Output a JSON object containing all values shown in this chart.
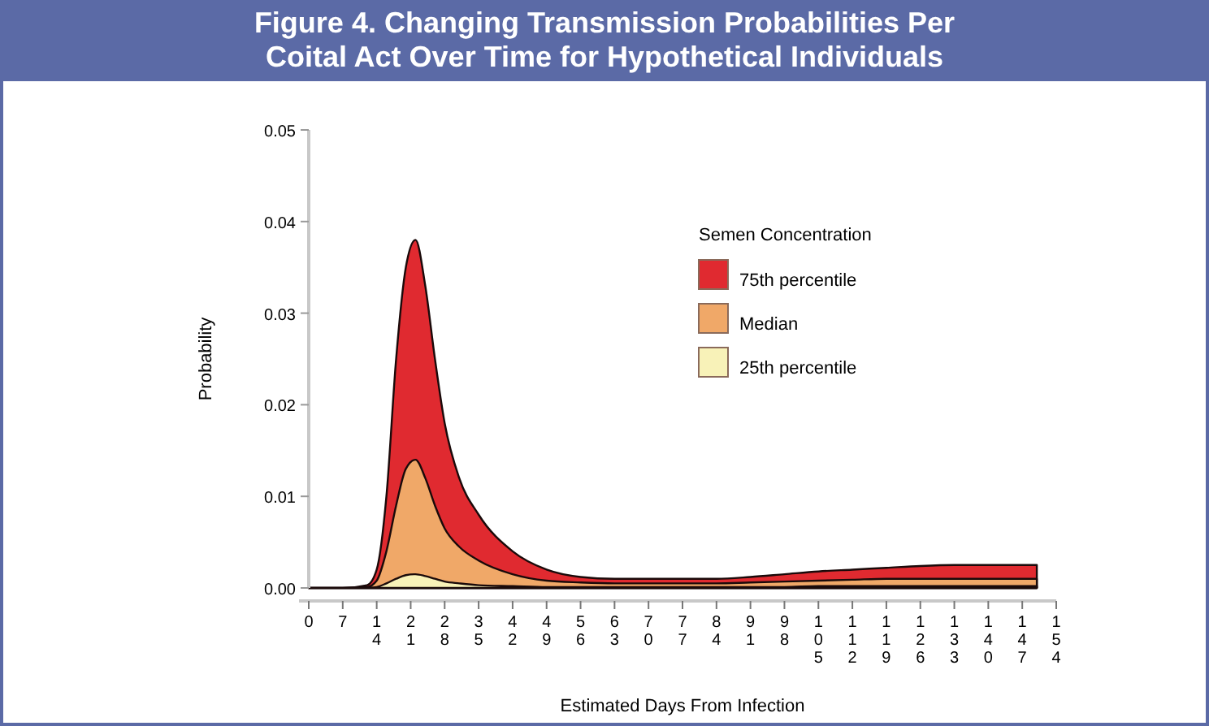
{
  "chart_data": {
    "type": "area",
    "title": "Figure 4. Changing Transmission Probabilities Per Coital Act Over Time for Hypothetical Individuals",
    "xlabel": "Estimated Days From Infection",
    "ylabel": "Probability",
    "legend_title": "Semen Concentration",
    "legend": "top right",
    "x": [
      0,
      7,
      12,
      14,
      16,
      18,
      20,
      22,
      24,
      26,
      28,
      31,
      35,
      42,
      49,
      56,
      63,
      70,
      77,
      84,
      91,
      98,
      105,
      112,
      119,
      126,
      133,
      140,
      147,
      150
    ],
    "xlim": [
      0,
      154
    ],
    "xticks": [
      0,
      7,
      14,
      21,
      28,
      35,
      42,
      49,
      56,
      63,
      70,
      77,
      84,
      91,
      98,
      105,
      112,
      119,
      126,
      133,
      140,
      147,
      154
    ],
    "ylim": [
      0,
      0.05
    ],
    "yticks": [
      {
        "value": 0,
        "label": "0.00"
      },
      {
        "value": 0.01,
        "label": "0.01"
      },
      {
        "value": 0.02,
        "label": "0.02"
      },
      {
        "value": 0.03,
        "label": "0.03"
      },
      {
        "value": 0.04,
        "label": "0.04"
      },
      {
        "value": 0.05,
        "label": "0.05"
      }
    ],
    "series": [
      {
        "name": "75th percentile",
        "color": "#e02a30",
        "values": [
          0,
          0,
          0.0003,
          0.002,
          0.01,
          0.025,
          0.035,
          0.038,
          0.033,
          0.025,
          0.018,
          0.012,
          0.008,
          0.004,
          0.002,
          0.0012,
          0.001,
          0.001,
          0.001,
          0.001,
          0.0012,
          0.0015,
          0.0018,
          0.002,
          0.0022,
          0.0024,
          0.0025,
          0.0025,
          0.0025,
          0.0025
        ]
      },
      {
        "name": "Median",
        "color": "#f0a868",
        "values": [
          0,
          0,
          0.0001,
          0.0008,
          0.004,
          0.009,
          0.013,
          0.014,
          0.012,
          0.009,
          0.0065,
          0.0045,
          0.003,
          0.0015,
          0.0008,
          0.0006,
          0.0005,
          0.0005,
          0.0005,
          0.0005,
          0.0006,
          0.0007,
          0.0008,
          0.0009,
          0.001,
          0.001,
          0.001,
          0.001,
          0.001,
          0.001
        ]
      },
      {
        "name": "25th percentile",
        "color": "#f8f2b8",
        "values": [
          0,
          0,
          0,
          0.0001,
          0.0005,
          0.001,
          0.0014,
          0.0015,
          0.0013,
          0.001,
          0.0007,
          0.0005,
          0.0003,
          0.0002,
          0.0001,
          0.0001,
          0.0001,
          0.0001,
          0.0001,
          0.0001,
          0.0001,
          0.0001,
          0.0002,
          0.0002,
          0.0002,
          0.0002,
          0.0002,
          0.0002,
          0.0002,
          0.0002
        ]
      }
    ]
  }
}
